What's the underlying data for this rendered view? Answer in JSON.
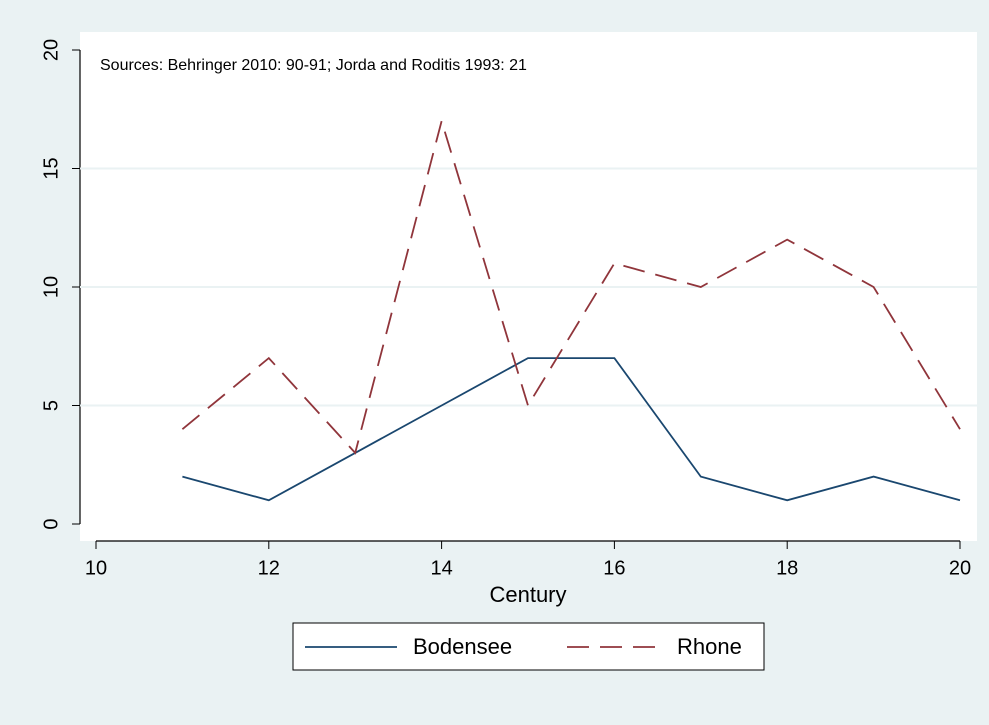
{
  "chart_data": {
    "type": "line",
    "annotation": "Sources: Behringer 2010: 90-91; Jorda and Roditis 1993: 21",
    "x_label": "Century",
    "x": [
      11,
      12,
      13,
      14,
      15,
      16,
      17,
      18,
      19,
      20
    ],
    "series": [
      {
        "name": "Bodensee",
        "color": "#1a476f",
        "dash": "solid",
        "values": [
          2,
          1,
          3,
          5,
          7,
          7,
          2,
          1,
          2,
          1
        ]
      },
      {
        "name": "Rhone",
        "color": "#90353b",
        "dash": "dashed",
        "values": [
          4,
          7,
          3,
          17,
          5,
          11,
          10,
          12,
          10,
          4
        ]
      }
    ],
    "xlim": [
      10,
      20
    ],
    "xticks": [
      10,
      12,
      14,
      16,
      18,
      20
    ],
    "ylim": [
      0,
      20
    ],
    "yticks": [
      0,
      5,
      10,
      15,
      20
    ],
    "grid": true,
    "legend": "bottom"
  }
}
